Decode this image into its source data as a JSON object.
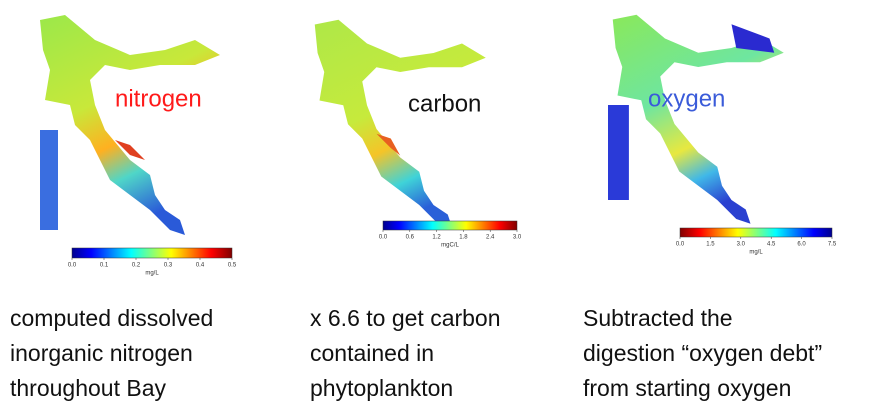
{
  "panels": [
    {
      "label": "nitrogen",
      "ticks": [
        "0.0",
        "0.1",
        "0.2",
        "0.3",
        "0.4",
        "0.5"
      ],
      "unit": "mg/L",
      "caption": [
        "computed dissolved",
        "inorganic nitrogen",
        "throughout Bay"
      ]
    },
    {
      "label": "carbon",
      "ticks": [
        "0.0",
        "0.6",
        "1.2",
        "1.8",
        "2.4",
        "3.0"
      ],
      "unit": "mgC/L",
      "caption": [
        "x 6.6 to get carbon",
        "contained in",
        "phytoplankton"
      ]
    },
    {
      "label": "oxygen",
      "ticks": [
        "0.0",
        "1.5",
        "3.0",
        "4.5",
        "6.0",
        "7.5"
      ],
      "unit": "mg/L",
      "caption": [
        "Subtracted the",
        "digestion “oxygen debt”",
        "from starting oxygen"
      ]
    }
  ]
}
